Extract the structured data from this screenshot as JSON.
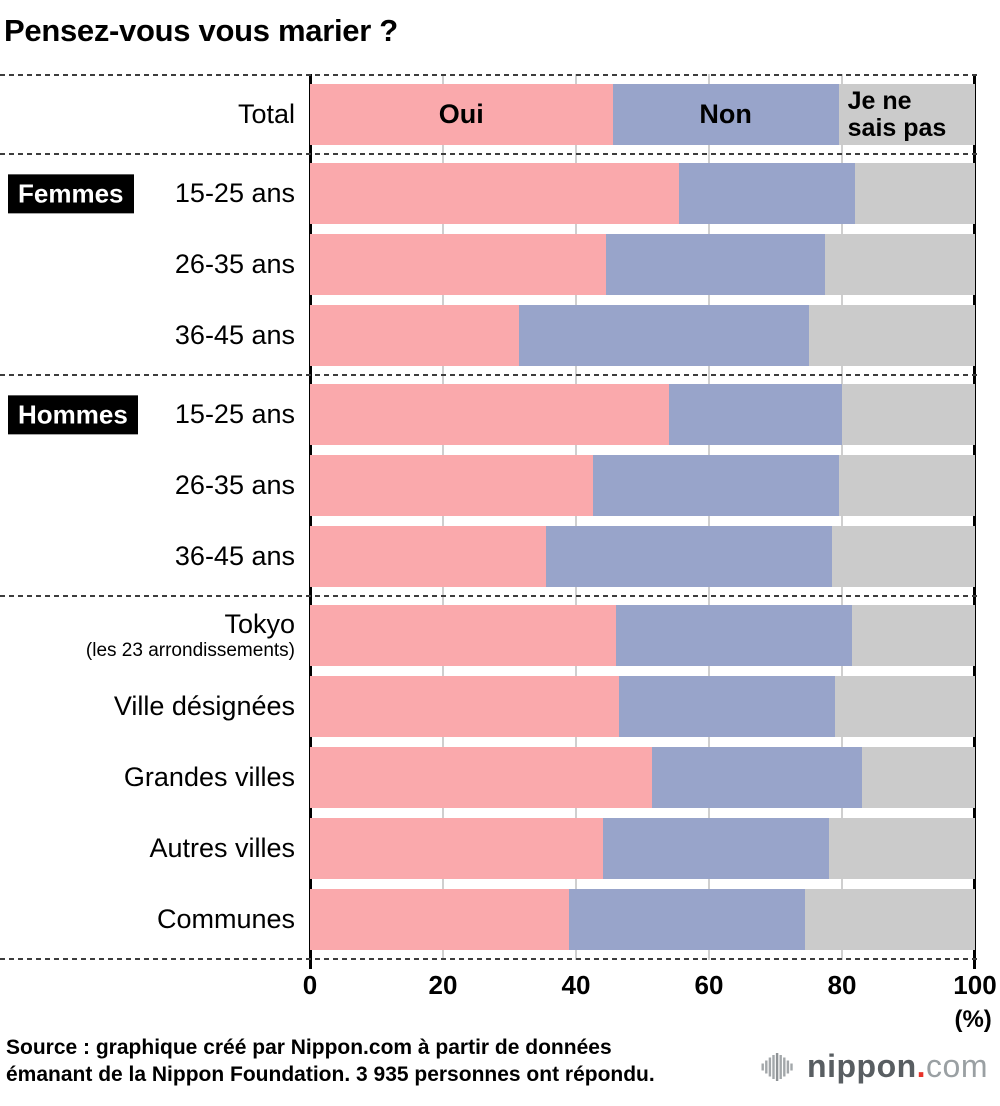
{
  "title": "Pensez-vous vous marier ?",
  "colors": {
    "oui": "#FAA9AC",
    "non": "#98A4CA",
    "nsp": "#CBCBCB"
  },
  "legend_nsp": {
    "line1": "Je ne",
    "line2": "sais pas"
  },
  "axis_unit": "(%)",
  "chart_data": {
    "type": "bar",
    "stacked": true,
    "orientation": "horizontal",
    "unit": "%",
    "xlim": [
      0,
      100
    ],
    "xticks": [
      0,
      20,
      40,
      60,
      80,
      100
    ],
    "legend": [
      "Oui",
      "Non",
      "Je ne sais pas"
    ],
    "rows": [
      {
        "label": "Total",
        "oui": 45.5,
        "non": 34,
        "nsp": 20.5
      },
      {
        "label": "15-25 ans",
        "group": "Femmes",
        "oui": 55.5,
        "non": 26.5,
        "nsp": 18
      },
      {
        "label": "26-35 ans",
        "oui": 44.5,
        "non": 33,
        "nsp": 22.5
      },
      {
        "label": "36-45 ans",
        "oui": 31.5,
        "non": 43.5,
        "nsp": 25
      },
      {
        "label": "15-25 ans",
        "group": "Hommes",
        "oui": 54,
        "non": 26,
        "nsp": 20
      },
      {
        "label": "26-35 ans",
        "oui": 42.5,
        "non": 37,
        "nsp": 20.5
      },
      {
        "label": "36-45 ans",
        "oui": 35.5,
        "non": 43,
        "nsp": 21.5
      },
      {
        "label": "Tokyo",
        "sublabel": "(les 23 arrondissements)",
        "oui": 46,
        "non": 35.5,
        "nsp": 18.5
      },
      {
        "label": "Ville désignées",
        "oui": 46.5,
        "non": 32.5,
        "nsp": 21
      },
      {
        "label": "Grandes villes",
        "oui": 51.5,
        "non": 31.5,
        "nsp": 17
      },
      {
        "label": "Autres villes",
        "oui": 44,
        "non": 34,
        "nsp": 22
      },
      {
        "label": "Communes",
        "oui": 39,
        "non": 35.5,
        "nsp": 25.5
      }
    ]
  },
  "source": {
    "line1": "Source : graphique créé par Nippon.com à partir de données",
    "line2": "émanant de la Nippon Foundation. 3 935 personnes ont répondu."
  },
  "logo": {
    "nippon": "nippon",
    "dot": ".",
    "com": "com"
  }
}
